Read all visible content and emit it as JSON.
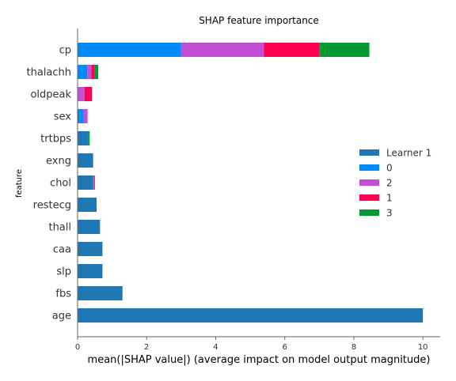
{
  "chart_data": {
    "type": "bar",
    "orientation": "horizontal",
    "stacked": true,
    "title": "SHAP feature importance",
    "xlabel": "mean(|SHAP value|) (average impact on model output magnitude)",
    "ylabel": "feature",
    "xlim": [
      0,
      10.5
    ],
    "xticks": [
      0,
      2,
      4,
      6,
      8,
      10
    ],
    "grid": false,
    "legend_position": "right",
    "categories": [
      "cp",
      "thalachh",
      "oldpeak",
      "sex",
      "trtbps",
      "exng",
      "chol",
      "restecg",
      "thall",
      "caa",
      "slp",
      "fbs",
      "age"
    ],
    "series": [
      {
        "name": "Learner 1",
        "color": "#1f77b4",
        "values": [
          0,
          0,
          0,
          0.05,
          0.3,
          0.45,
          0.45,
          0.55,
          0.65,
          0.72,
          0.72,
          1.3,
          10.0
        ]
      },
      {
        "name": "0",
        "color": "#008bfb",
        "values": [
          3.0,
          0.28,
          0,
          0.12,
          0,
          0,
          0,
          0,
          0,
          0,
          0,
          0,
          0
        ]
      },
      {
        "name": "2",
        "color": "#c34fd6",
        "values": [
          2.4,
          0.12,
          0.2,
          0.12,
          0,
          0,
          0.03,
          0,
          0,
          0,
          0,
          0,
          0
        ]
      },
      {
        "name": "1",
        "color": "#ff0051",
        "values": [
          1.6,
          0.1,
          0.22,
          0,
          0,
          0,
          0.02,
          0,
          0,
          0,
          0,
          0,
          0
        ]
      },
      {
        "name": "3",
        "color": "#009933",
        "values": [
          1.45,
          0.1,
          0,
          0,
          0.05,
          0,
          0,
          0,
          0,
          0,
          0,
          0,
          0
        ]
      }
    ]
  }
}
